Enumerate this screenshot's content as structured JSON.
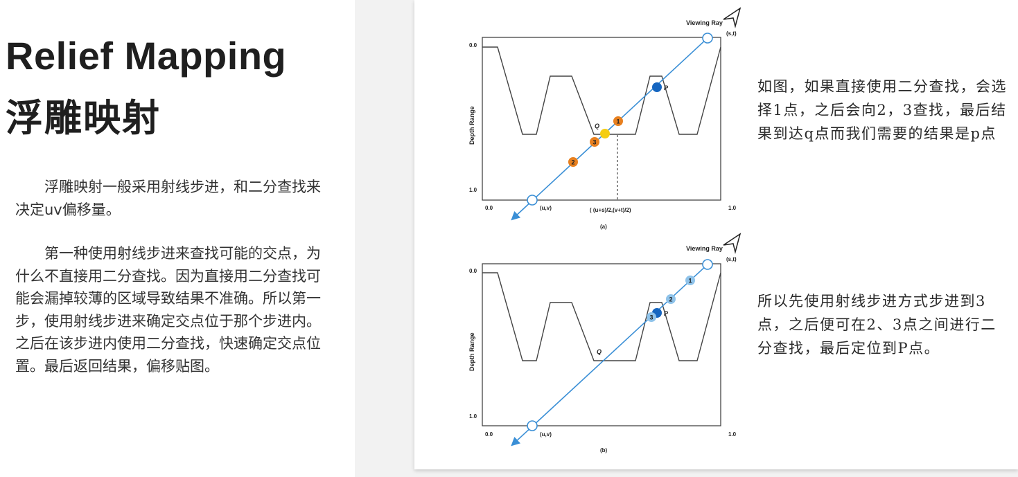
{
  "title_en": "Relief Mapping",
  "title_zh": "浮雕映射",
  "paragraphs": [
    "浮雕映射一般采用射线步进，和二分查找来决定uv偏移量。",
    "第一种使用射线步进来查找可能的交点，为什么不直接用二分查找。因为直接用二分查找可能会漏掉较薄的区域导致结果不准确。所以第一步，使用射线步进来确定交点位于那个步进内。之后在该步进内使用二分查找，快速确定交点位置。最后返回结果，偏移贴图。"
  ],
  "figure_a": {
    "viewing_ray": "Viewing Ray",
    "y_axis_label": "Depth Range",
    "y_top": "0.0",
    "y_bottom": "1.0",
    "x_left": "0.0",
    "x_right": "1.0",
    "uv_label": "(u,v)",
    "st_label": "(s,t)",
    "mid_label": "( (u+s)/2,(v+t)/2)",
    "caption": "(a)",
    "p_label": "P",
    "q_label": "Q",
    "markers": [
      "1",
      "2",
      "3"
    ]
  },
  "figure_b": {
    "viewing_ray": "Viewing Ray",
    "y_axis_label": "Depth Range",
    "y_top": "0.0",
    "y_bottom": "1.0",
    "x_left": "0.0",
    "x_right": "1.0",
    "uv_label": "(u,v)",
    "st_label": "(s,t)",
    "caption": "(b)",
    "p_label": "P",
    "q_label": "Q",
    "markers": [
      "1",
      "2",
      "3"
    ]
  },
  "notes": [
    "如图，如果直接使用二分查找，会选择1点，之后会向2，3查找，最后结果到达q点而我们需要的结果是p点",
    "所以先使用射线步进方式步进到3点，之后便可在2、3点之间进行二分查找，最后定位到P点。"
  ],
  "colors": {
    "ray": "#3a8fd6",
    "marker_orange": "#e8801f",
    "marker_yellow": "#f5cd12",
    "marker_light_blue": "#8fc3ea",
    "point_p": "#1565c0",
    "profile": "#444444",
    "text_dark": "#1f1f1f"
  }
}
